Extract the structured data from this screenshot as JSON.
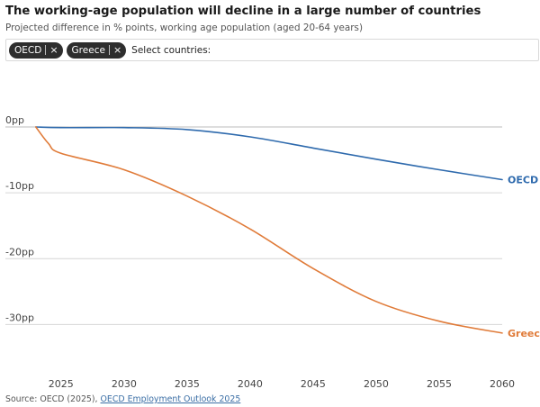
{
  "header": {
    "title": "The working-age population will decline in a large number of countries",
    "subtitle": "Projected difference in % points, working age population (aged 20-64 years)"
  },
  "selector": {
    "chips": [
      {
        "label": "OECD",
        "remove_glyph": "×"
      },
      {
        "label": "Greece",
        "remove_glyph": "×"
      }
    ],
    "label": "Select countries:"
  },
  "footer": {
    "source_prefix": "Source: OECD (2025), ",
    "source_link": "OECD Employment Outlook 2025"
  },
  "chart_data": {
    "type": "line",
    "title": "The working-age population will decline in a large number of countries",
    "subtitle": "Projected difference in % points, working age population (aged 20-64 years)",
    "xlabel": "",
    "ylabel": "",
    "xlim": [
      2022.8,
      2060
    ],
    "ylim": [
      -32,
      0
    ],
    "x_ticks": [
      2025,
      2030,
      2035,
      2040,
      2045,
      2050,
      2055,
      2060
    ],
    "y_ticks": [
      {
        "value": 0,
        "label": "0pp"
      },
      {
        "value": -10,
        "label": "-10pp"
      },
      {
        "value": -20,
        "label": "-20pp"
      },
      {
        "value": -30,
        "label": "-30pp"
      }
    ],
    "grid": "horizontal",
    "series": [
      {
        "name": "OECD",
        "color": "#2e6aad",
        "x": [
          2023,
          2025,
          2030,
          2035,
          2040,
          2045,
          2050,
          2055,
          2060
        ],
        "y": [
          0,
          -0.1,
          -0.1,
          -0.4,
          -1.5,
          -3.2,
          -4.9,
          -6.5,
          -8.0
        ]
      },
      {
        "name": "Greece",
        "color": "#e07b39",
        "x": [
          2023,
          2024,
          2025,
          2030,
          2035,
          2040,
          2045,
          2050,
          2055,
          2060
        ],
        "y": [
          0,
          -2.5,
          -4.0,
          -6.5,
          -10.5,
          -15.5,
          -21.5,
          -26.5,
          -29.5,
          -31.3
        ]
      }
    ]
  }
}
